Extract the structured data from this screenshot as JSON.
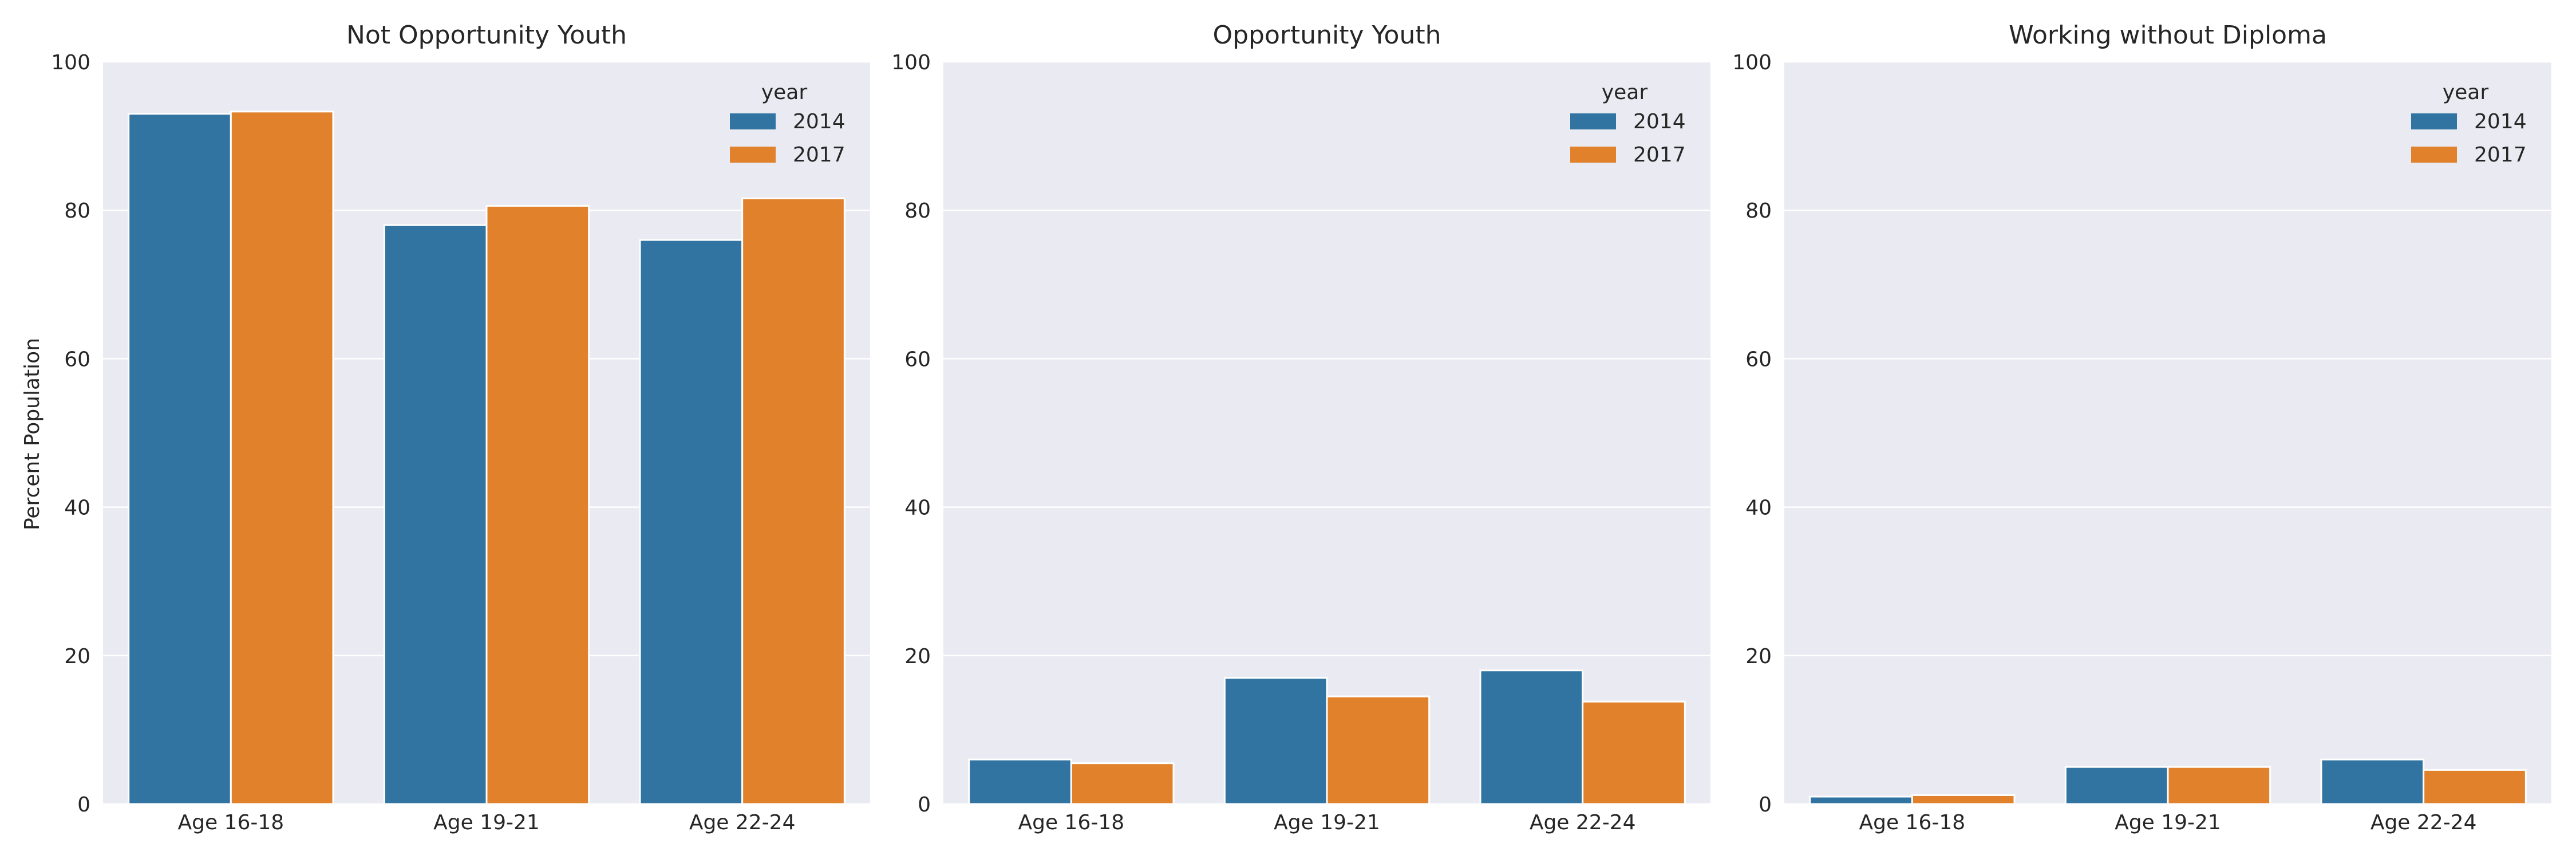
{
  "figure": {
    "ylabel": "Percent Population"
  },
  "chart_data": [
    {
      "type": "bar",
      "title": "Not Opportunity Youth",
      "categories": [
        "Age 16-18",
        "Age 19-21",
        "Age 22-24"
      ],
      "series": [
        {
          "name": "2014",
          "values": [
            93.0,
            78.0,
            76.0
          ]
        },
        {
          "name": "2017",
          "values": [
            93.3,
            80.6,
            81.6
          ]
        }
      ],
      "xlabel": "",
      "ylabel": "Percent Population",
      "ylim": [
        0,
        100
      ],
      "yticks": [
        0,
        20,
        40,
        60,
        80,
        100
      ],
      "legend": {
        "title": "year",
        "position": "top-right"
      },
      "grid": true
    },
    {
      "type": "bar",
      "title": "Opportunity Youth",
      "categories": [
        "Age 16-18",
        "Age 19-21",
        "Age 22-24"
      ],
      "series": [
        {
          "name": "2014",
          "values": [
            6.0,
            17.0,
            18.0
          ]
        },
        {
          "name": "2017",
          "values": [
            5.5,
            14.5,
            13.8
          ]
        }
      ],
      "xlabel": "",
      "ylabel": "",
      "ylim": [
        0,
        100
      ],
      "yticks": [
        0,
        20,
        40,
        60,
        80,
        100
      ],
      "legend": {
        "title": "year",
        "position": "top-right"
      },
      "grid": true
    },
    {
      "type": "bar",
      "title": "Working without Diploma",
      "categories": [
        "Age 16-18",
        "Age 19-21",
        "Age 22-24"
      ],
      "series": [
        {
          "name": "2014",
          "values": [
            1.0,
            5.0,
            6.0
          ]
        },
        {
          "name": "2017",
          "values": [
            1.2,
            5.0,
            4.6
          ]
        }
      ],
      "xlabel": "",
      "ylabel": "",
      "ylim": [
        0,
        100
      ],
      "yticks": [
        0,
        20,
        40,
        60,
        80,
        100
      ],
      "legend": {
        "title": "year",
        "position": "top-right"
      },
      "grid": true
    }
  ],
  "colors": {
    "series": [
      "#3274a1",
      "#e1812c"
    ],
    "plot_background": "#eaeaf2",
    "grid": "#ffffff",
    "text": "#262626"
  }
}
